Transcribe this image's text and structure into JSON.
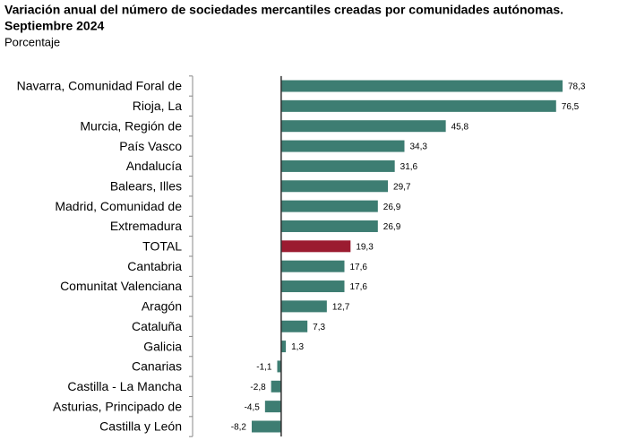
{
  "chart_data": {
    "type": "bar",
    "orientation": "horizontal",
    "title": "Variación anual del número de sociedades mercantiles creadas por comunidades autónomas.",
    "subtitle": "Septiembre 2024",
    "unit_label": "Porcentaje",
    "categories": [
      "Navarra, Comunidad Foral de",
      "Rioja, La",
      "Murcia, Región de",
      "País Vasco",
      "Andalucía",
      "Balears, Illes",
      "Madrid, Comunidad de",
      "Extremadura",
      "TOTAL",
      "Cantabria",
      "Comunitat Valenciana",
      "Aragón",
      "Cataluña",
      "Galicia",
      "Canarias",
      "Castilla - La Mancha",
      "Asturias, Principado de",
      "Castilla y León"
    ],
    "values": [
      78.3,
      76.5,
      45.8,
      34.3,
      31.6,
      29.7,
      26.9,
      26.9,
      19.3,
      17.6,
      17.6,
      12.7,
      7.3,
      1.3,
      -1.1,
      -2.8,
      -4.5,
      -8.2
    ],
    "value_labels": [
      "78,3",
      "76,5",
      "45,8",
      "34,3",
      "31,6",
      "29,7",
      "26,9",
      "26,9",
      "19,3",
      "17,6",
      "17,6",
      "12,7",
      "7,3",
      "1,3",
      "-1,1",
      "-2,8",
      "-4,5",
      "-8,2"
    ],
    "colors": [
      "#3d7d72",
      "#3d7d72",
      "#3d7d72",
      "#3d7d72",
      "#3d7d72",
      "#3d7d72",
      "#3d7d72",
      "#3d7d72",
      "#9b1b30",
      "#3d7d72",
      "#3d7d72",
      "#3d7d72",
      "#3d7d72",
      "#3d7d72",
      "#3d7d72",
      "#3d7d72",
      "#3d7d72",
      "#3d7d72"
    ]
  }
}
